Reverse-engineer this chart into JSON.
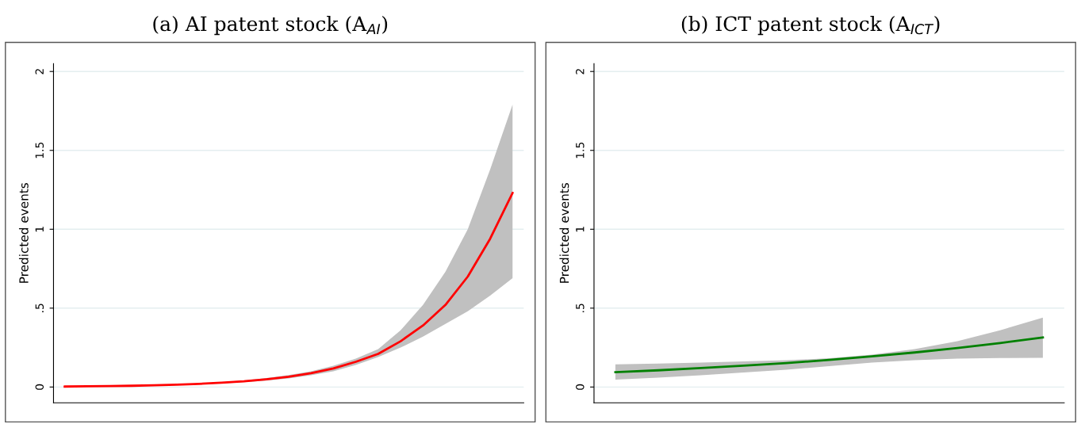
{
  "chart_data": [
    {
      "type": "line",
      "title": "(a) AI patent stock (A$_{AI}$)",
      "ylabel": "Predicted events",
      "categories": [
        null,
        null,
        null,
        null,
        null,
        null,
        null,
        null,
        null,
        null,
        null,
        null,
        null,
        null,
        null,
        null,
        null,
        null,
        null,
        null,
        null
      ],
      "ylim": [
        -0.1,
        2.05
      ],
      "yticks": [
        0,
        {
          "value": 0.5,
          "label": ".5"
        },
        1,
        1.5,
        2
      ],
      "grid": "y",
      "series": [
        {
          "color": "#ff0000",
          "values": [
            0.003,
            0.005,
            0.006,
            0.008,
            0.011,
            0.015,
            0.02,
            0.027,
            0.036,
            0.049,
            0.065,
            0.088,
            0.118,
            0.16,
            0.21,
            0.29,
            0.39,
            0.52,
            0.7,
            0.94,
            1.23
          ],
          "lower": [
            0.003,
            0.004,
            0.005,
            0.007,
            0.01,
            0.013,
            0.017,
            0.023,
            0.03,
            0.041,
            0.055,
            0.075,
            0.1,
            0.14,
            0.19,
            0.25,
            0.32,
            0.4,
            0.48,
            0.58,
            0.69
          ],
          "upper": [
            0.003,
            0.005,
            0.007,
            0.009,
            0.012,
            0.017,
            0.023,
            0.031,
            0.042,
            0.057,
            0.076,
            0.1,
            0.135,
            0.18,
            0.24,
            0.36,
            0.52,
            0.73,
            1.0,
            1.38,
            1.79
          ]
        }
      ]
    },
    {
      "type": "line",
      "title": "(b) ICT patent stock (A$_{ICT}$)",
      "ylabel": "Predicted events",
      "categories": [
        null,
        null,
        null,
        null,
        null,
        null,
        null,
        null,
        null,
        null,
        null
      ],
      "ylim": [
        -0.1,
        2.05
      ],
      "yticks": [
        0,
        {
          "value": 0.5,
          "label": ".5"
        },
        1,
        1.5,
        2
      ],
      "grid": "y",
      "series": [
        {
          "color": "#008000",
          "values": [
            0.094,
            0.106,
            0.12,
            0.135,
            0.152,
            0.172,
            0.194,
            0.219,
            0.247,
            0.279,
            0.314
          ],
          "lower": [
            0.047,
            0.06,
            0.075,
            0.092,
            0.11,
            0.132,
            0.155,
            0.17,
            0.18,
            0.184,
            0.185
          ],
          "upper": [
            0.144,
            0.149,
            0.155,
            0.162,
            0.17,
            0.182,
            0.205,
            0.24,
            0.29,
            0.36,
            0.44
          ]
        }
      ]
    }
  ]
}
